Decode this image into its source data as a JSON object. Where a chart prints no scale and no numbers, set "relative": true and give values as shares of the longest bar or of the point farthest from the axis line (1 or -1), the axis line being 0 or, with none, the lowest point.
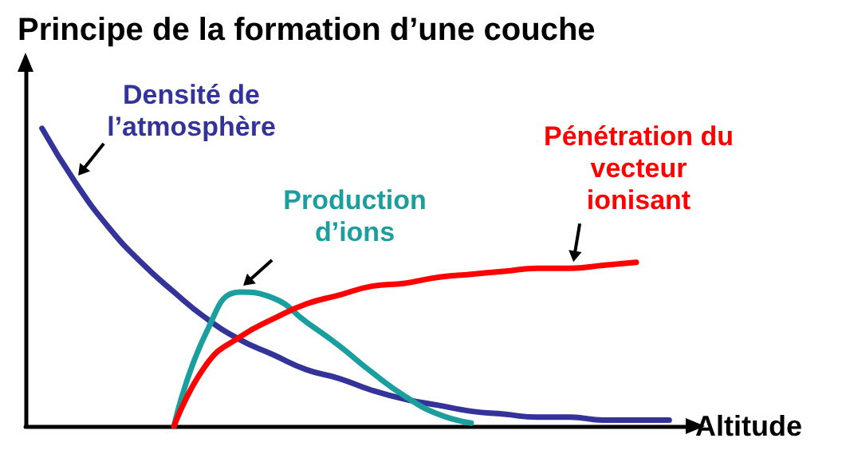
{
  "chart_data": {
    "type": "line",
    "title": "Principe de la formation d’une couche",
    "xlabel": "Altitude",
    "relative": true,
    "marker": "none",
    "grid": false,
    "legend": false,
    "categories": [
      null,
      null,
      null,
      null,
      null,
      null,
      null,
      null,
      null,
      null,
      null,
      null,
      null,
      null,
      null,
      null,
      null,
      null,
      null,
      null
    ],
    "series": [
      {
        "name": "Densité de l’atmosphère",
        "color": "#333399",
        "values": [
          1,
          0.82,
          0.67,
          0.55,
          0.45,
          0.36,
          0.29,
          0.24,
          0.19,
          0.16,
          0.12,
          0.09,
          0.07,
          0.05,
          0.04,
          0.03,
          0.03,
          0.02,
          0.02,
          0.02
        ]
      },
      {
        "name": "Production d’ions",
        "color": "#1a9e9e",
        "values": [
          null,
          null,
          null,
          null,
          0,
          0.32,
          0.45,
          0.43,
          0.35,
          0.27,
          0.18,
          0.1,
          0.04,
          0.01,
          null,
          null,
          null,
          null,
          null,
          null
        ]
      },
      {
        "name": "Pénétration du vecteur ionisant",
        "color": "#ff0000",
        "values": [
          null,
          null,
          null,
          null,
          0,
          0.21,
          0.3,
          0.36,
          0.41,
          0.44,
          0.47,
          0.48,
          0.5,
          0.51,
          0.52,
          0.53,
          0.53,
          0.54,
          0.55,
          null
        ]
      }
    ]
  }
}
